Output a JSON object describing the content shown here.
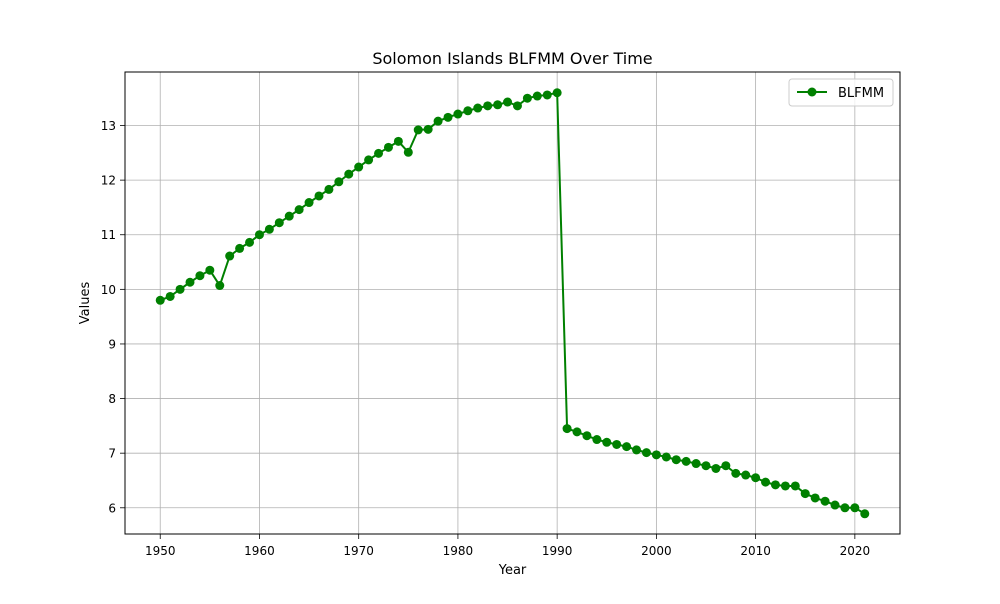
{
  "chart_data": {
    "type": "line",
    "title": "Solomon Islands BLFMM Over Time",
    "xlabel": "Year",
    "ylabel": "Values",
    "xlim": [
      1946.45,
      2024.55
    ],
    "ylim": [
      5.52,
      13.98
    ],
    "x_ticks": [
      1950,
      1960,
      1970,
      1980,
      1990,
      2000,
      2010,
      2020
    ],
    "y_ticks": [
      6,
      7,
      8,
      9,
      10,
      11,
      12,
      13
    ],
    "grid": true,
    "legend_position": "top-right",
    "series": [
      {
        "name": "BLFMM",
        "color": "#008000",
        "marker": "circle",
        "x": [
          1950,
          1951,
          1952,
          1953,
          1954,
          1955,
          1956,
          1957,
          1958,
          1959,
          1960,
          1961,
          1962,
          1963,
          1964,
          1965,
          1966,
          1967,
          1968,
          1969,
          1970,
          1971,
          1972,
          1973,
          1974,
          1975,
          1976,
          1977,
          1978,
          1979,
          1980,
          1981,
          1982,
          1983,
          1984,
          1985,
          1986,
          1987,
          1988,
          1989,
          1990,
          1991,
          1992,
          1993,
          1994,
          1995,
          1996,
          1997,
          1998,
          1999,
          2000,
          2001,
          2002,
          2003,
          2004,
          2005,
          2006,
          2007,
          2008,
          2009,
          2010,
          2011,
          2012,
          2013,
          2014,
          2015,
          2016,
          2017,
          2018,
          2019,
          2020,
          2021
        ],
        "values": [
          9.8,
          9.87,
          10.0,
          10.13,
          10.25,
          10.35,
          10.07,
          10.61,
          10.75,
          10.86,
          11.0,
          11.1,
          11.22,
          11.34,
          11.46,
          11.59,
          11.71,
          11.83,
          11.97,
          12.11,
          12.24,
          12.37,
          12.49,
          12.6,
          12.71,
          12.51,
          12.92,
          12.93,
          13.08,
          13.15,
          13.21,
          13.27,
          13.32,
          13.36,
          13.38,
          13.43,
          13.36,
          13.5,
          13.54,
          13.56,
          13.6,
          7.45,
          7.39,
          7.32,
          7.25,
          7.2,
          7.16,
          7.12,
          7.06,
          7.01,
          6.97,
          6.93,
          6.88,
          6.85,
          6.81,
          6.77,
          6.72,
          6.77,
          6.63,
          6.6,
          6.55,
          6.47,
          6.42,
          6.4,
          6.4,
          6.26,
          6.18,
          6.12,
          6.05,
          6.0,
          6.0,
          5.89
        ]
      }
    ]
  }
}
